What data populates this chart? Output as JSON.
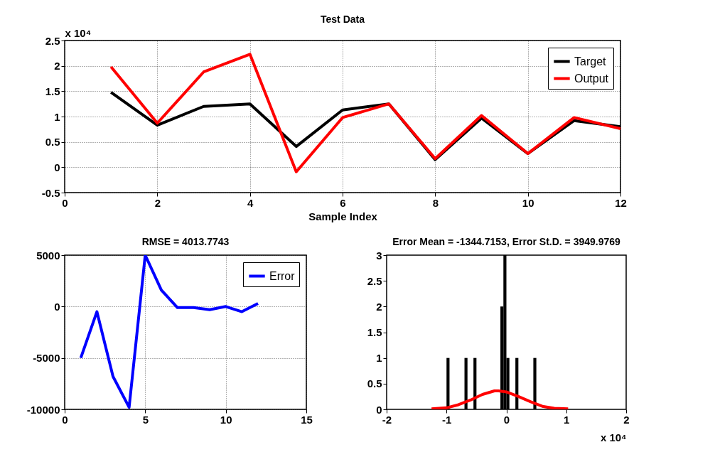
{
  "chart_data": [
    {
      "type": "line",
      "title": "Test Data",
      "xlabel": "Sample Index",
      "x": [
        1,
        2,
        3,
        4,
        5,
        6,
        7,
        8,
        9,
        10,
        11,
        12
      ],
      "series": [
        {
          "name": "Target",
          "color": "#000000",
          "values": [
            1.48,
            0.83,
            1.2,
            1.25,
            0.41,
            1.13,
            1.25,
            0.15,
            0.97,
            0.27,
            0.92,
            0.8
          ]
        },
        {
          "name": "Output",
          "color": "#ff0000",
          "values": [
            1.98,
            0.87,
            1.88,
            2.23,
            -0.09,
            0.98,
            1.25,
            0.17,
            1.02,
            0.27,
            0.98,
            0.76
          ]
        }
      ],
      "xlim": [
        0,
        12
      ],
      "xticks": [
        0,
        2,
        4,
        6,
        8,
        10,
        12
      ],
      "ylim": [
        -0.5,
        2.5
      ],
      "yticks": [
        -0.5,
        0,
        0.5,
        1,
        1.5,
        2,
        2.5
      ],
      "annotations": [
        "x 10⁴"
      ],
      "grid": true,
      "legend": "top right"
    },
    {
      "type": "line",
      "title": "RMSE = 4013.7743",
      "x": [
        1,
        2,
        3,
        4,
        5,
        6,
        7,
        8,
        9,
        10,
        11,
        12
      ],
      "series": [
        {
          "name": "Error",
          "color": "#0000ff",
          "values": [
            -5000,
            -500,
            -6800,
            -9800,
            5000,
            1600,
            -100,
            -100,
            -300,
            0,
            -500,
            300
          ]
        }
      ],
      "xlim": [
        0,
        15
      ],
      "xticks": [
        0,
        5,
        10,
        15
      ],
      "ylim": [
        -10000,
        5000
      ],
      "yticks": [
        -10000,
        -5000,
        0,
        5000
      ],
      "grid": true,
      "legend": "top right"
    },
    {
      "type": "histogram",
      "title": "Error Mean = -1344.7153, Error St.D. = 3949.9769",
      "color": "#000000",
      "bins": [
        -1,
        -0.95,
        -0.9,
        -0.85,
        -0.8,
        -0.75,
        -0.7,
        -0.65,
        -0.6,
        -0.55,
        -0.5,
        -0.45,
        -0.4,
        -0.35,
        -0.3,
        -0.25,
        -0.2,
        -0.15,
        -0.1,
        -0.05,
        0,
        0.05,
        0.1,
        0.15,
        0.2,
        0.25,
        0.3,
        0.35,
        0.4,
        0.45,
        0.5
      ],
      "values": [
        1,
        0,
        0,
        0,
        0,
        0,
        1,
        0,
        0,
        1,
        0,
        0,
        0,
        0,
        0,
        0,
        0,
        0,
        2,
        3,
        1,
        0,
        0,
        1,
        0,
        0,
        0,
        0,
        0,
        1
      ],
      "series": [
        {
          "type": "line",
          "color": "#ff0000",
          "x": [
            -1.25,
            -1,
            -0.8,
            -0.6,
            -0.4,
            -0.2,
            -0.13,
            0,
            0.2,
            0.4,
            0.6,
            0.8,
            1.03
          ],
          "values": [
            0.01,
            0.03,
            0.09,
            0.18,
            0.29,
            0.36,
            0.36,
            0.34,
            0.25,
            0.15,
            0.06,
            0.02,
            0.01
          ]
        }
      ],
      "xlim": [
        -2,
        2
      ],
      "xticks": [
        -2,
        -1,
        0,
        1,
        2
      ],
      "ylim": [
        0,
        3
      ],
      "yticks": [
        0,
        0.5,
        1,
        1.5,
        2,
        2.5,
        3
      ],
      "annotations": [
        "x 10⁴"
      ]
    }
  ]
}
